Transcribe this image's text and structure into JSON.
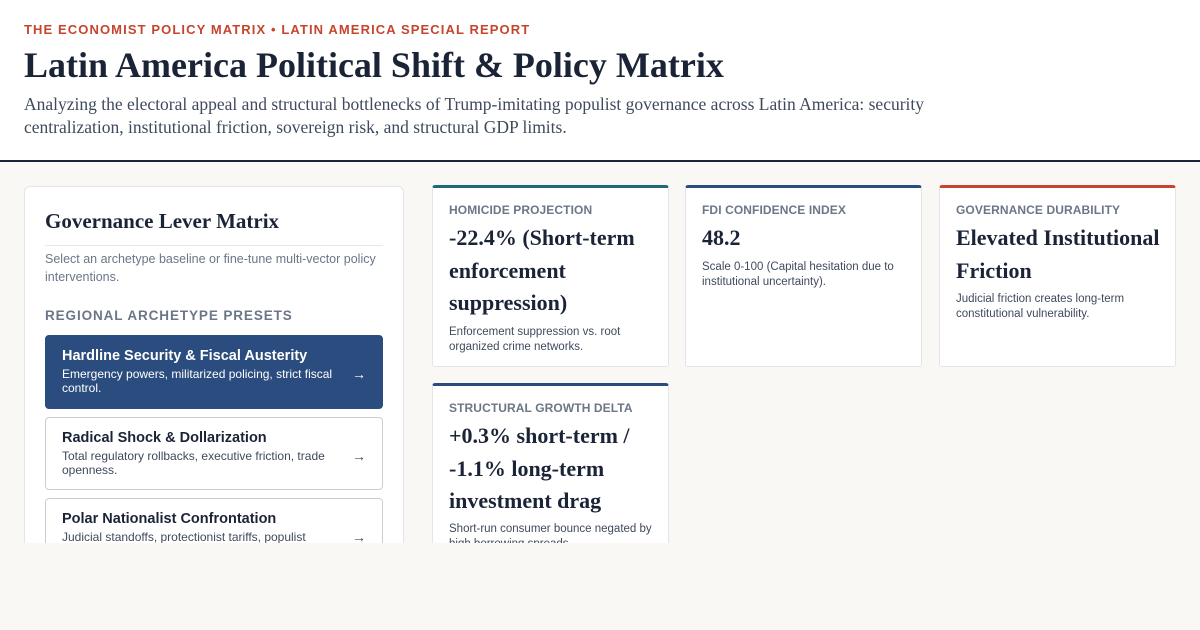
{
  "header": {
    "kicker": "THE ECONOMIST POLICY MATRIX • LATIN AMERICA SPECIAL REPORT",
    "title": "Latin America Political Shift & Policy Matrix",
    "subtitle": "Analyzing the electoral appeal and structural bottlenecks of Trump-imitating populist governance across Latin America: security centralization, institutional friction, sovereign risk, and structural GDP limits."
  },
  "panel": {
    "title": "Governance Lever Matrix",
    "hint": "Select an archetype baseline or fine-tune multi-vector policy interventions.",
    "section_label": "REGIONAL ARCHETYPE PRESETS",
    "presets": [
      {
        "name": "Hardline Security & Fiscal Austerity",
        "desc": "Emergency powers, militarized policing, strict fiscal control.",
        "arrow": "→",
        "active": true
      },
      {
        "name": "Radical Shock & Dollarization",
        "desc": "Total regulatory rollbacks, executive friction, trade openness.",
        "arrow": "→",
        "active": false
      },
      {
        "name": "Polar Nationalist Confrontation",
        "desc": "Judicial standoffs, protectionist tariffs, populist",
        "arrow": "→",
        "active": false
      }
    ]
  },
  "cards": {
    "homicide": {
      "label": "HOMICIDE PROJECTION",
      "value": "-22.4% (Short-term enforcement suppression)",
      "note": "Enforcement suppression vs. root organized crime networks.",
      "accent": "#1e6b78"
    },
    "fdi": {
      "label": "FDI CONFIDENCE INDEX",
      "value": "48.2",
      "note": "Scale 0-100 (Capital hesitation due to institutional uncertainty).",
      "accent": "#2b4c7e"
    },
    "durability": {
      "label": "GOVERNANCE DURABILITY",
      "value": "Elevated Institutional Friction",
      "note": "Judicial friction creates long-term constitutional vulnerability.",
      "accent": "#c7442e"
    },
    "growth": {
      "label": "STRUCTURAL GROWTH DELTA",
      "value": "+0.3% short-term / -1.1% long-term investment drag",
      "note": "Short-run consumer bounce negated by high borrowing spreads.",
      "accent": "#2b4c7e"
    }
  }
}
